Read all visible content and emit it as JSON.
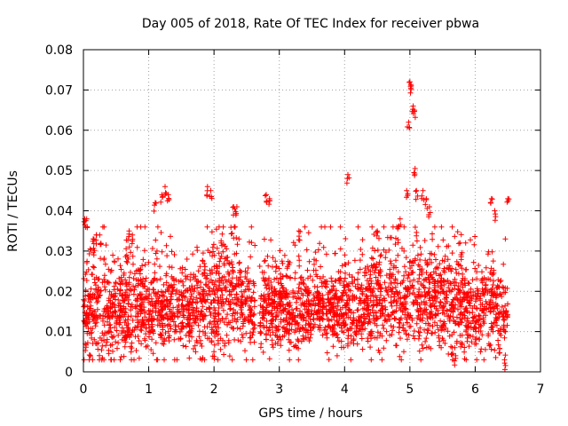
{
  "chart_data": {
    "type": "scatter",
    "title": "Day 005 of 2018, Rate Of TEC Index for receiver pbwa",
    "xlabel": "GPS time / hours",
    "ylabel": "ROTI / TECUs",
    "xlim": [
      0,
      7
    ],
    "ylim": [
      0,
      0.08
    ],
    "x_ticks": [
      0,
      1,
      2,
      3,
      4,
      5,
      6,
      7
    ],
    "x_tick_labels": [
      "0",
      "1",
      "2",
      "3",
      "4",
      "5",
      "6",
      "7"
    ],
    "y_ticks": [
      0,
      0.01,
      0.02,
      0.03,
      0.04,
      0.05,
      0.06,
      0.07,
      0.08
    ],
    "y_tick_labels": [
      "0",
      "0.01",
      "0.02",
      "0.03",
      "0.04",
      "0.05",
      "0.06",
      "0.07",
      "0.08"
    ],
    "grid": true,
    "marker": "+",
    "marker_color": "#ff0000",
    "data_x_range": [
      0,
      6.5
    ],
    "typical_band": [
      0.005,
      0.03
    ],
    "series": [
      {
        "name": "ROTI",
        "note": "dense cloud of thousands of points; listed values are the distinct outliers / peaks read from the plot",
        "points": [
          [
            0.02,
            0.038
          ],
          [
            0.05,
            0.038
          ],
          [
            0.15,
            0.033
          ],
          [
            0.2,
            0.034
          ],
          [
            0.25,
            0.034
          ],
          [
            0.7,
            0.035
          ],
          [
            0.75,
            0.034
          ],
          [
            1.1,
            0.042
          ],
          [
            1.2,
            0.044
          ],
          [
            1.25,
            0.046
          ],
          [
            1.3,
            0.044
          ],
          [
            1.9,
            0.046
          ],
          [
            1.95,
            0.045
          ],
          [
            2.3,
            0.041
          ],
          [
            2.35,
            0.041
          ],
          [
            2.8,
            0.044
          ],
          [
            2.85,
            0.043
          ],
          [
            3.3,
            0.035
          ],
          [
            4.05,
            0.049
          ],
          [
            4.5,
            0.035
          ],
          [
            4.85,
            0.038
          ],
          [
            4.95,
            0.045
          ],
          [
            4.98,
            0.062
          ],
          [
            5.0,
            0.072
          ],
          [
            5.02,
            0.071
          ],
          [
            5.05,
            0.066
          ],
          [
            5.07,
            0.065
          ],
          [
            5.08,
            0.0505
          ],
          [
            5.1,
            0.045
          ],
          [
            5.2,
            0.045
          ],
          [
            5.25,
            0.043
          ],
          [
            5.3,
            0.041
          ],
          [
            5.65,
            0.006
          ],
          [
            5.7,
            0.004
          ],
          [
            6.25,
            0.043
          ],
          [
            6.3,
            0.04
          ],
          [
            6.5,
            0.043
          ],
          [
            6.45,
            0.003
          ],
          [
            0.03,
            0.007
          ],
          [
            2.0,
            0.005
          ]
        ]
      }
    ]
  }
}
